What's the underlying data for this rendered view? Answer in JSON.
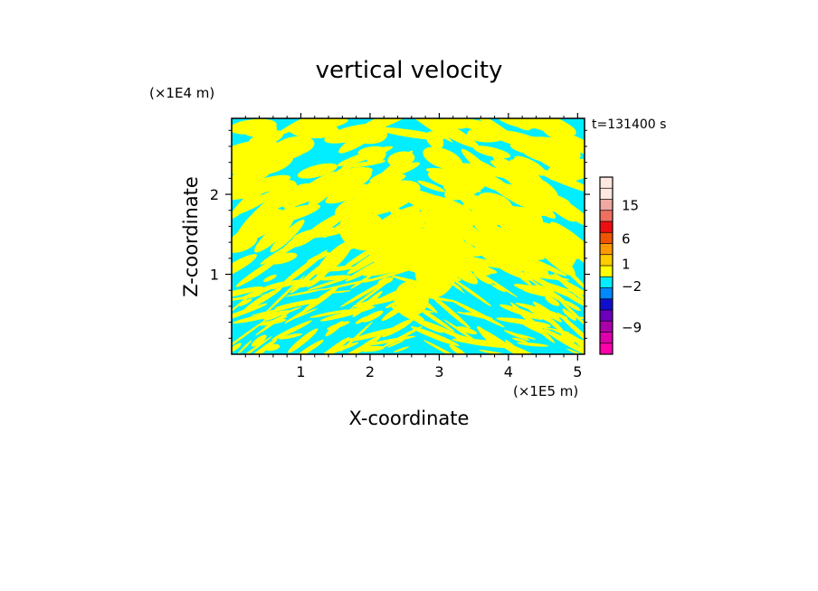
{
  "chart_data": {
    "type": "heatmap",
    "title": "vertical velocity",
    "xlabel": "X-coordinate",
    "ylabel": "Z-coordinate",
    "x_unit": "(×1E5 m)",
    "y_unit": "(×1E4 m)",
    "time_label": "t=131400 s",
    "xlim": [
      0,
      5.1
    ],
    "ylim": [
      0,
      2.95
    ],
    "x_ticks": [
      1,
      2,
      3,
      4,
      5
    ],
    "x_tick_labels": [
      "1",
      "2",
      "3",
      "4",
      "5"
    ],
    "y_ticks": [
      1,
      2
    ],
    "y_tick_labels": [
      "1",
      "2"
    ],
    "dominant_colors": {
      "negative_small": "#00eeff",
      "positive_small": "#ffff00"
    },
    "colorbar": {
      "levels": [
        {
          "color": "#ffe8e0"
        },
        {
          "color": "#ffe8e0"
        },
        {
          "color": "#f0a8a0"
        },
        {
          "color": "#f07060"
        },
        {
          "color": "#ee1010"
        },
        {
          "color": "#ee5500"
        },
        {
          "color": "#ff9900"
        },
        {
          "color": "#ffcc00"
        },
        {
          "color": "#ffff00"
        },
        {
          "color": "#00eeff"
        },
        {
          "color": "#0088ff"
        },
        {
          "color": "#1010cc"
        },
        {
          "color": "#6a00bb"
        },
        {
          "color": "#aa00aa"
        },
        {
          "color": "#dd00aa"
        },
        {
          "color": "#ff00aa"
        }
      ],
      "tick_labels": [
        "15",
        "6",
        "1",
        "−2",
        "−9"
      ],
      "tick_level_index": [
        2.5,
        5.5,
        7.8,
        9.8,
        13.5
      ]
    }
  }
}
